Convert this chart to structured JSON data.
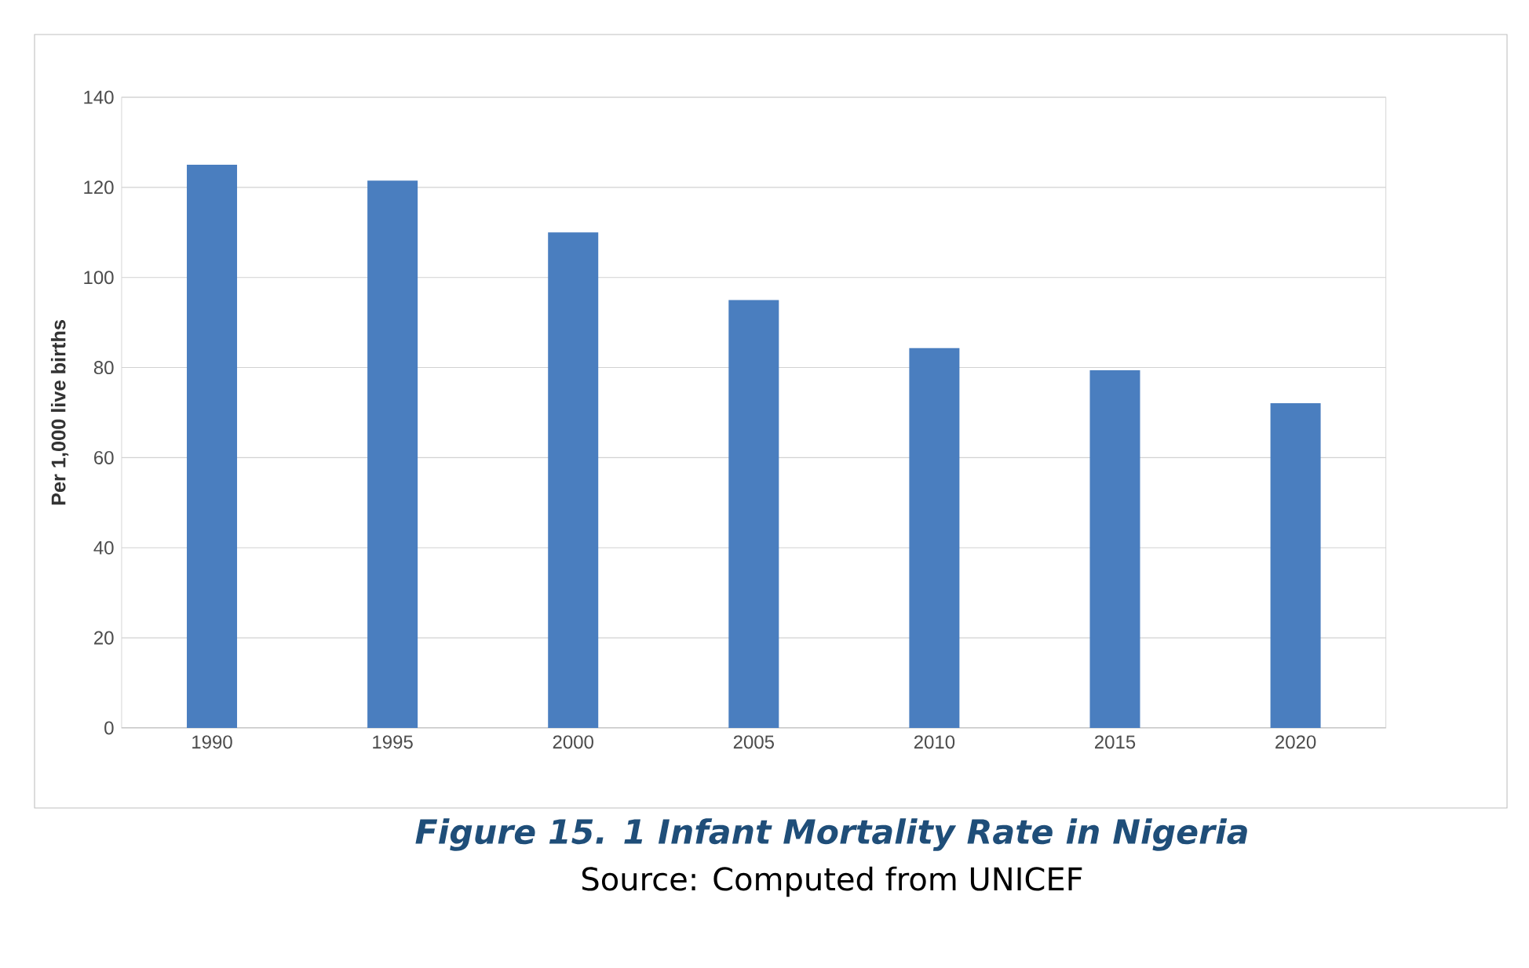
{
  "chart_data": {
    "type": "bar",
    "title": "Figure 15. 1 Infant Mortality Rate in Nigeria",
    "ylabel": "Per 1,000 live births",
    "categories": [
      "1990",
      "1995",
      "2000",
      "2005",
      "2010",
      "2015",
      "2020"
    ],
    "values": [
      125,
      121.5,
      110,
      95,
      84.3,
      79.4,
      72.1
    ],
    "color": "#4a7ebf",
    "ylim": [
      0,
      140
    ],
    "yticks": [
      0,
      20,
      40,
      60,
      80,
      100,
      120,
      140
    ],
    "grid": "y",
    "annotations": [
      "Source: Computed from UNICEF"
    ]
  }
}
